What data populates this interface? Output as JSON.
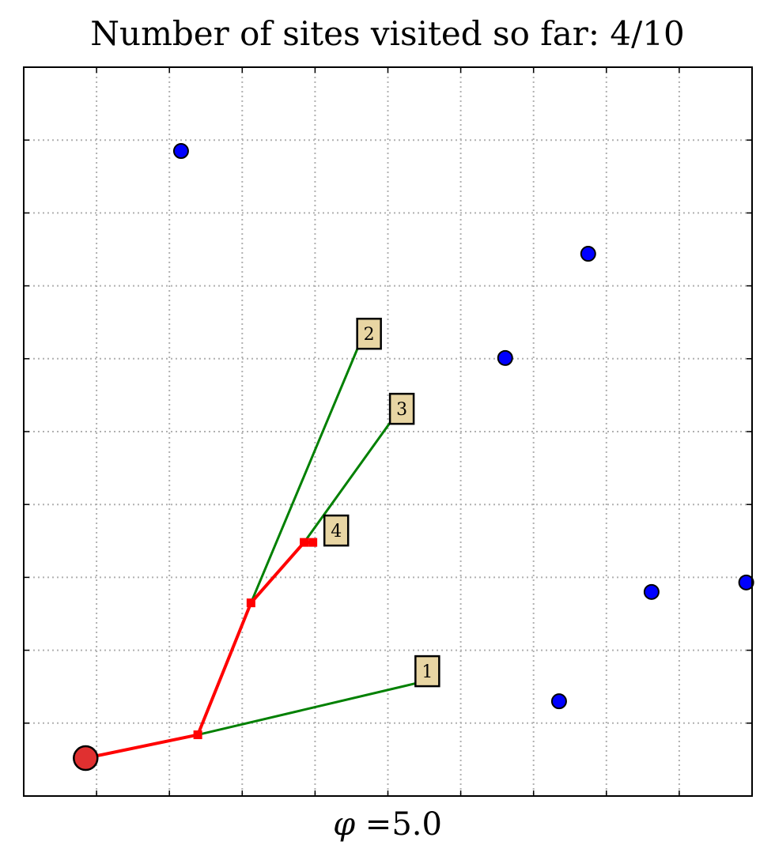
{
  "chart_data": {
    "type": "scatter",
    "title": "Number of sites visited so far: 4/10",
    "xlabel_symbol": "φ",
    "xlabel_value": "=5.0",
    "ylabel": "",
    "xlim": [
      0,
      10
    ],
    "ylim": [
      0,
      10
    ],
    "grid": true,
    "grid_style": "dotted",
    "x_ticks": [
      1,
      2,
      3,
      4,
      5,
      6,
      7,
      8,
      9
    ],
    "y_ticks": [
      1,
      2,
      3,
      4,
      5,
      6,
      7,
      8,
      9
    ],
    "start": {
      "x": 0.85,
      "y": 0.52
    },
    "unvisited_sites": [
      {
        "x": 2.16,
        "y": 8.85
      },
      {
        "x": 7.75,
        "y": 7.44
      },
      {
        "x": 6.61,
        "y": 6.01
      },
      {
        "x": 8.62,
        "y": 2.8
      },
      {
        "x": 9.92,
        "y": 2.93
      },
      {
        "x": 7.35,
        "y": 1.3
      }
    ],
    "visited_path": [
      {
        "x": 0.85,
        "y": 0.52
      },
      {
        "x": 2.39,
        "y": 0.84
      },
      {
        "x": 3.12,
        "y": 2.65
      },
      {
        "x": 3.85,
        "y": 3.48
      },
      {
        "x": 3.97,
        "y": 3.48
      }
    ],
    "labeled_sites": [
      {
        "label": "1",
        "x": 5.4,
        "y": 1.55,
        "from": {
          "x": 2.39,
          "y": 0.84
        }
      },
      {
        "label": "2",
        "x": 4.6,
        "y": 6.18,
        "from": {
          "x": 3.12,
          "y": 2.65
        }
      },
      {
        "label": "3",
        "x": 5.05,
        "y": 5.15,
        "from": {
          "x": 3.85,
          "y": 3.48
        }
      },
      {
        "label": "4",
        "x": 4.15,
        "y": 3.48,
        "from": null
      }
    ],
    "colors": {
      "path": "#ff0000",
      "link": "#008000",
      "site": "#0000ff",
      "start_fill": "#e03030",
      "label_box": "#e8d5a3",
      "grid": "#b0b0b0"
    }
  }
}
